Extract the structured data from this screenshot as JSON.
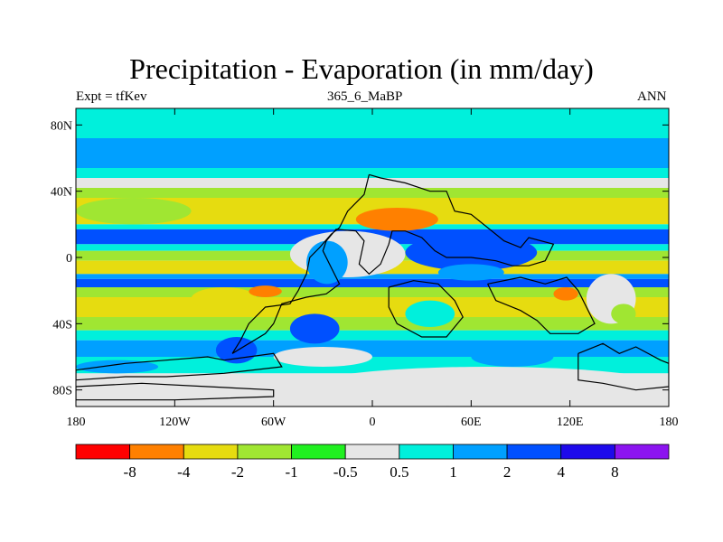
{
  "title": "Precipitation - Evaporation (in mm/day)",
  "left_string": "Expt = tfKev",
  "center_string": "365_6_MaBP",
  "right_string": "ANN",
  "axes": {
    "lat_ticks": [
      {
        "value": 80,
        "label": "80N"
      },
      {
        "value": 40,
        "label": "40N"
      },
      {
        "value": 0,
        "label": "0"
      },
      {
        "value": -40,
        "label": "40S"
      },
      {
        "value": -80,
        "label": "80S"
      }
    ],
    "lon_ticks": [
      {
        "value": -180,
        "label": "180"
      },
      {
        "value": -120,
        "label": "120W"
      },
      {
        "value": -60,
        "label": "60W"
      },
      {
        "value": 0,
        "label": "0"
      },
      {
        "value": 60,
        "label": "60E"
      },
      {
        "value": 120,
        "label": "120E"
      },
      {
        "value": 180,
        "label": "180"
      }
    ],
    "lat_range": [
      -90,
      90
    ],
    "lon_range": [
      -180,
      180
    ]
  },
  "colorbar": {
    "colors": [
      "#ff0000",
      "#ff8000",
      "#e6dc10",
      "#a0e632",
      "#20f020",
      "#e6e6e6",
      "#00f0dc",
      "#00a0ff",
      "#0050ff",
      "#1e0aeb",
      "#8c14f0"
    ],
    "labels": [
      "-8",
      "-4",
      "-2",
      "-1",
      "-0.5",
      "0.5",
      "1",
      "2",
      "4",
      "8"
    ]
  },
  "zonal_bands": [
    {
      "lat": [
        90,
        72
      ],
      "color": "#00f0dc"
    },
    {
      "lat": [
        72,
        54
      ],
      "color": "#00a0ff"
    },
    {
      "lat": [
        54,
        48
      ],
      "color": "#00f0dc"
    },
    {
      "lat": [
        48,
        42
      ],
      "color": "#e6e6e6"
    },
    {
      "lat": [
        42,
        36
      ],
      "color": "#a0e632"
    },
    {
      "lat": [
        36,
        20
      ],
      "color": "#e6dc10"
    },
    {
      "lat": [
        20,
        17
      ],
      "color": "#00f0dc"
    },
    {
      "lat": [
        17,
        8
      ],
      "color": "#0050ff"
    },
    {
      "lat": [
        8,
        4
      ],
      "color": "#00f0dc"
    },
    {
      "lat": [
        4,
        -2
      ],
      "color": "#a0e632"
    },
    {
      "lat": [
        -2,
        -10
      ],
      "color": "#e6dc10"
    },
    {
      "lat": [
        -10,
        -13
      ],
      "color": "#00a0ff"
    },
    {
      "lat": [
        -13,
        -18
      ],
      "color": "#0050ff"
    },
    {
      "lat": [
        -18,
        -24
      ],
      "color": "#a0e632"
    },
    {
      "lat": [
        -24,
        -36
      ],
      "color": "#e6dc10"
    },
    {
      "lat": [
        -36,
        -44
      ],
      "color": "#a0e632"
    },
    {
      "lat": [
        -44,
        -50
      ],
      "color": "#00f0dc"
    },
    {
      "lat": [
        -50,
        -60
      ],
      "color": "#00a0ff"
    },
    {
      "lat": [
        -60,
        -70
      ],
      "color": "#00f0dc"
    },
    {
      "lat": [
        -70,
        -90
      ],
      "color": "#e6e6e6"
    }
  ],
  "patches": [
    {
      "lon": [
        -180,
        -110
      ],
      "lat": [
        36,
        20
      ],
      "color": "#a0e632"
    },
    {
      "lon": [
        -10,
        40
      ],
      "lat": [
        30,
        16
      ],
      "color": "#ff8000"
    },
    {
      "lon": [
        -50,
        20
      ],
      "lat": [
        16,
        -12
      ],
      "color": "#e6e6e6"
    },
    {
      "lon": [
        -40,
        -15
      ],
      "lat": [
        10,
        -16
      ],
      "color": "#00a0ff"
    },
    {
      "lon": [
        20,
        100
      ],
      "lat": [
        14,
        -8
      ],
      "color": "#0050ff"
    },
    {
      "lon": [
        40,
        80
      ],
      "lat": [
        -4,
        -14
      ],
      "color": "#00a0ff"
    },
    {
      "lon": [
        -110,
        -70
      ],
      "lat": [
        -18,
        -32
      ],
      "color": "#e6dc10"
    },
    {
      "lon": [
        -75,
        -55
      ],
      "lat": [
        -17,
        -24
      ],
      "color": "#ff8000"
    },
    {
      "lon": [
        -50,
        -20
      ],
      "lat": [
        -34,
        -52
      ],
      "color": "#0050ff"
    },
    {
      "lon": [
        20,
        50
      ],
      "lat": [
        -26,
        -42
      ],
      "color": "#00f0dc"
    },
    {
      "lon": [
        110,
        125
      ],
      "lat": [
        -18,
        -26
      ],
      "color": "#ff8000"
    },
    {
      "lon": [
        130,
        160
      ],
      "lat": [
        -10,
        -40
      ],
      "color": "#e6e6e6"
    },
    {
      "lon": [
        145,
        160
      ],
      "lat": [
        -28,
        -40
      ],
      "color": "#a0e632"
    },
    {
      "lon": [
        -95,
        -70
      ],
      "lat": [
        -48,
        -64
      ],
      "color": "#0050ff"
    },
    {
      "lon": [
        -60,
        0
      ],
      "lat": [
        -54,
        -66
      ],
      "color": "#e6e6e6"
    },
    {
      "lon": [
        -40,
        180
      ],
      "lat": [
        -66,
        -90
      ],
      "color": "#e6e6e6"
    },
    {
      "lon": [
        60,
        110
      ],
      "lat": [
        -54,
        -66
      ],
      "color": "#00a0ff"
    },
    {
      "lon": [
        -180,
        -130
      ],
      "lat": [
        -62,
        -70
      ],
      "color": "#00a0ff"
    }
  ],
  "coast_outlines": [
    [
      [
        -2,
        50
      ],
      [
        5,
        48
      ],
      [
        20,
        45
      ],
      [
        35,
        40
      ],
      [
        45,
        40
      ],
      [
        50,
        28
      ],
      [
        60,
        26
      ],
      [
        70,
        18
      ],
      [
        80,
        10
      ],
      [
        90,
        6
      ],
      [
        95,
        12
      ],
      [
        110,
        8
      ],
      [
        105,
        -2
      ],
      [
        95,
        -5
      ],
      [
        85,
        -5
      ],
      [
        75,
        -2
      ],
      [
        60,
        0
      ],
      [
        45,
        0
      ],
      [
        38,
        4
      ],
      [
        30,
        12
      ],
      [
        20,
        16
      ],
      [
        12,
        16
      ],
      [
        10,
        8
      ],
      [
        5,
        -4
      ],
      [
        -2,
        -10
      ],
      [
        -8,
        -4
      ],
      [
        -5,
        10
      ],
      [
        -10,
        16
      ],
      [
        -22,
        17
      ],
      [
        -28,
        10
      ],
      [
        -30,
        4
      ],
      [
        -25,
        -6
      ],
      [
        -20,
        -16
      ],
      [
        -28,
        -22
      ],
      [
        -40,
        -24
      ],
      [
        -55,
        -28
      ],
      [
        -60,
        -40
      ],
      [
        -65,
        -46
      ],
      [
        -75,
        -52
      ],
      [
        -85,
        -58
      ],
      [
        -80,
        -50
      ],
      [
        -75,
        -40
      ],
      [
        -65,
        -30
      ],
      [
        -50,
        -28
      ],
      [
        -45,
        -20
      ],
      [
        -40,
        -10
      ],
      [
        -38,
        0
      ],
      [
        -32,
        6
      ],
      [
        -25,
        14
      ],
      [
        -20,
        18
      ],
      [
        -15,
        28
      ],
      [
        -5,
        38
      ],
      [
        -2,
        50
      ]
    ],
    [
      [
        10,
        -18
      ],
      [
        25,
        -14
      ],
      [
        40,
        -16
      ],
      [
        50,
        -26
      ],
      [
        55,
        -36
      ],
      [
        45,
        -48
      ],
      [
        30,
        -48
      ],
      [
        15,
        -40
      ],
      [
        10,
        -30
      ],
      [
        10,
        -18
      ]
    ],
    [
      [
        70,
        -16
      ],
      [
        90,
        -12
      ],
      [
        105,
        -16
      ],
      [
        118,
        -12
      ],
      [
        125,
        -20
      ],
      [
        130,
        -30
      ],
      [
        135,
        -40
      ],
      [
        125,
        -46
      ],
      [
        108,
        -46
      ],
      [
        100,
        -38
      ],
      [
        90,
        -32
      ],
      [
        75,
        -26
      ],
      [
        70,
        -16
      ]
    ],
    [
      [
        -180,
        -68
      ],
      [
        -150,
        -64
      ],
      [
        -125,
        -62
      ],
      [
        -100,
        -60
      ],
      [
        -90,
        -62
      ],
      [
        -60,
        -58
      ],
      [
        -55,
        -66
      ],
      [
        -90,
        -70
      ],
      [
        -125,
        -72
      ],
      [
        -150,
        -72
      ],
      [
        -180,
        -74
      ],
      [
        -180,
        -68
      ]
    ],
    [
      [
        125,
        -58
      ],
      [
        140,
        -52
      ],
      [
        150,
        -58
      ],
      [
        160,
        -54
      ],
      [
        175,
        -62
      ],
      [
        180,
        -64
      ],
      [
        180,
        -78
      ],
      [
        160,
        -80
      ],
      [
        140,
        -76
      ],
      [
        125,
        -74
      ],
      [
        125,
        -58
      ]
    ],
    [
      [
        -180,
        -78
      ],
      [
        -140,
        -76
      ],
      [
        -100,
        -78
      ],
      [
        -60,
        -80
      ],
      [
        -60,
        -84
      ],
      [
        -120,
        -86
      ],
      [
        -180,
        -86
      ],
      [
        -180,
        -78
      ]
    ]
  ]
}
